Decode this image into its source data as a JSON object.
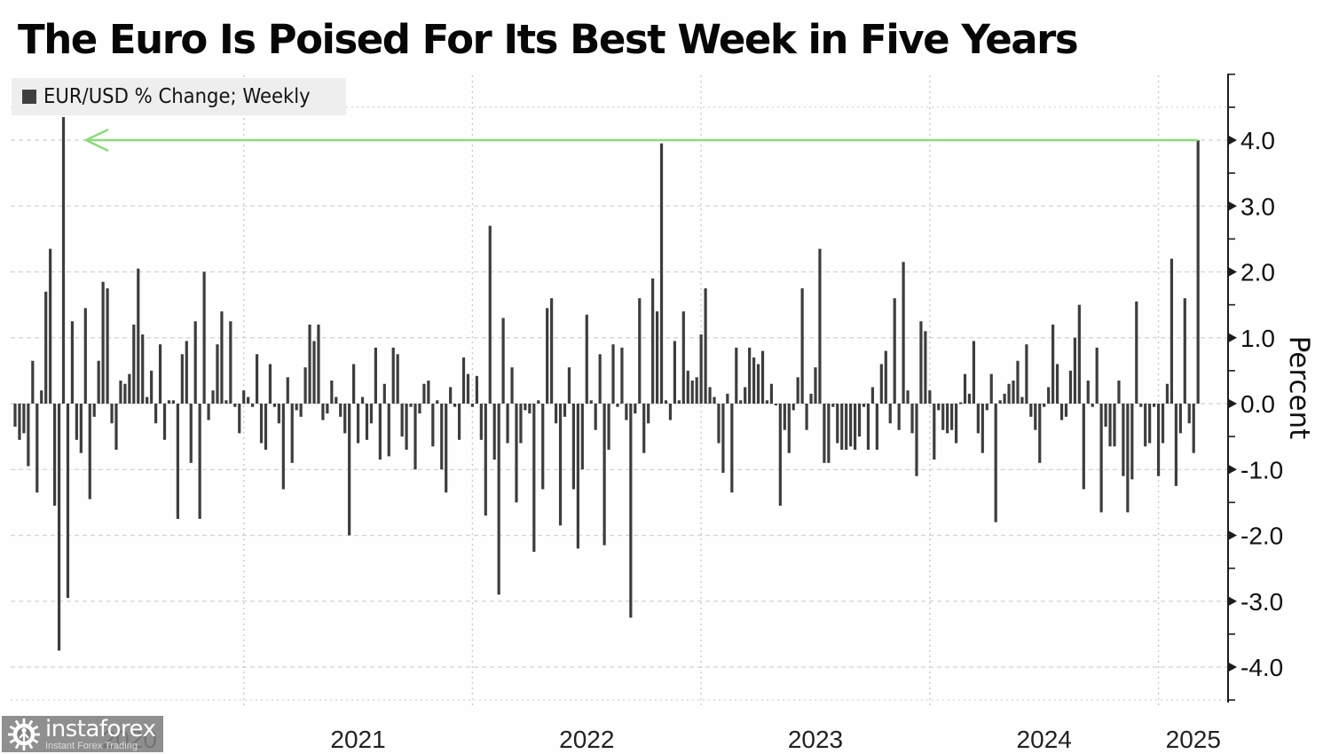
{
  "title": "The Euro Is Poised For Its Best Week in Five Years",
  "legend": {
    "label": "EUR/USD % Change; Weekly",
    "marker_color": "#3f3f3f"
  },
  "y_axis_title": "Percent",
  "watermark": {
    "brand": "instaforex",
    "tagline": "Instant Forex Trading"
  },
  "colors": {
    "bar": "#3d3d3d",
    "arrow_green": "#8fd97f",
    "grid_dash": "#d2d2d2",
    "grid_dot": "#c9c9c9",
    "axis": "#1c1c1c",
    "label": "#222222",
    "legend_bg": "#eeeeee",
    "watermark_bg": "#828282"
  },
  "chart_data": {
    "type": "bar",
    "title": "The Euro Is Poised For Its Best Week in Five Years",
    "series_label": "EUR/USD % Change; Weekly",
    "frequency": "weekly",
    "ylabel": "Percent",
    "ylim": [
      -4.5,
      5.0
    ],
    "y_ticks": [
      4.0,
      3.0,
      2.0,
      1.0,
      0.0,
      -1.0,
      -2.0,
      -3.0,
      -4.0
    ],
    "x_years": [
      "2020",
      "2021",
      "2022",
      "2023",
      "2024",
      "2025"
    ],
    "weeks_per_year": 52,
    "annotation": {
      "type": "arrow-left",
      "y_level": 4.0,
      "from": "last bar top",
      "to": "early-2020 spike"
    },
    "values": [
      -0.35,
      -0.55,
      -0.45,
      -0.95,
      0.65,
      -1.35,
      0.2,
      1.7,
      2.35,
      -1.55,
      -3.75,
      4.35,
      -2.95,
      1.25,
      -0.55,
      -0.75,
      1.45,
      -1.45,
      -0.2,
      0.65,
      1.85,
      1.75,
      -0.3,
      -0.7,
      0.35,
      0.3,
      0.45,
      1.2,
      2.05,
      1.05,
      0.1,
      0.5,
      -0.3,
      0.9,
      -0.55,
      0.05,
      0.05,
      -1.75,
      0.75,
      0.95,
      -0.9,
      1.25,
      -1.75,
      2.0,
      -0.25,
      0.2,
      0.9,
      1.4,
      0.05,
      1.25,
      -0.05,
      -0.45,
      0.2,
      0.1,
      -0.05,
      0.75,
      -0.6,
      -0.7,
      0.6,
      -0.05,
      -0.3,
      -1.3,
      0.4,
      -0.9,
      -0.1,
      -0.2,
      0.55,
      1.2,
      0.95,
      1.2,
      -0.25,
      -0.15,
      0.35,
      0.1,
      -0.2,
      -0.45,
      -2.0,
      0.6,
      -0.6,
      0.1,
      -0.55,
      -0.3,
      0.85,
      -0.85,
      0.3,
      -0.8,
      0.85,
      0.75,
      -0.5,
      -0.7,
      -0.05,
      -1.0,
      -0.15,
      0.3,
      0.35,
      -0.65,
      0.05,
      -1.0,
      -1.35,
      0.25,
      -0.05,
      -0.55,
      0.7,
      0.45,
      -0.05,
      0.42,
      -0.55,
      -1.7,
      2.7,
      -0.85,
      -2.9,
      1.3,
      -0.6,
      0.55,
      -1.5,
      -0.6,
      -0.1,
      -0.15,
      -2.25,
      0.05,
      -1.3,
      1.45,
      1.6,
      -0.3,
      -1.85,
      -0.2,
      0.55,
      -1.3,
      -2.2,
      -1.0,
      1.35,
      0.05,
      -0.4,
      0.75,
      -2.15,
      -0.7,
      0.9,
      -0.05,
      0.85,
      -0.25,
      -3.25,
      -0.15,
      1.6,
      -0.75,
      -0.3,
      1.9,
      1.4,
      3.95,
      0.05,
      -0.25,
      0.95,
      0.05,
      1.4,
      0.5,
      0.35,
      0.4,
      1.05,
      1.75,
      0.25,
      0.1,
      -0.6,
      -1.05,
      0.15,
      -1.35,
      0.85,
      0.05,
      0.25,
      0.85,
      0.7,
      0.6,
      0.8,
      0.05,
      0.3,
      -0.02,
      -1.55,
      -0.4,
      -0.75,
      -0.1,
      0.4,
      1.75,
      -0.4,
      0.15,
      0.55,
      2.35,
      -0.9,
      -0.9,
      -0.05,
      -0.6,
      -0.7,
      -0.7,
      -0.65,
      -0.7,
      -0.5,
      -0.05,
      -0.7,
      0.25,
      -0.7,
      0.6,
      0.8,
      -0.3,
      1.6,
      -0.4,
      2.15,
      0.2,
      -0.45,
      -1.1,
      1.25,
      1.1,
      0.2,
      -0.85,
      -0.1,
      -0.4,
      -0.45,
      -0.4,
      -0.6,
      0.02,
      0.45,
      0.15,
      0.95,
      -0.45,
      -0.75,
      -0.1,
      0.45,
      -1.8,
      0.05,
      0.15,
      0.3,
      0.35,
      0.65,
      0.1,
      0.9,
      -0.2,
      -0.4,
      -0.9,
      -0.05,
      0.25,
      1.2,
      0.6,
      -0.25,
      -0.2,
      0.5,
      1.0,
      1.5,
      -1.3,
      0.35,
      -0.05,
      0.85,
      -1.65,
      -0.35,
      -0.65,
      -0.65,
      0.35,
      -1.1,
      -1.65,
      -1.15,
      1.55,
      -0.05,
      -0.65,
      -0.6,
      -0.05,
      -1.1,
      -0.6,
      0.3,
      2.2,
      -1.25,
      -0.45,
      1.6,
      -0.3,
      -0.75,
      4.0
    ]
  }
}
